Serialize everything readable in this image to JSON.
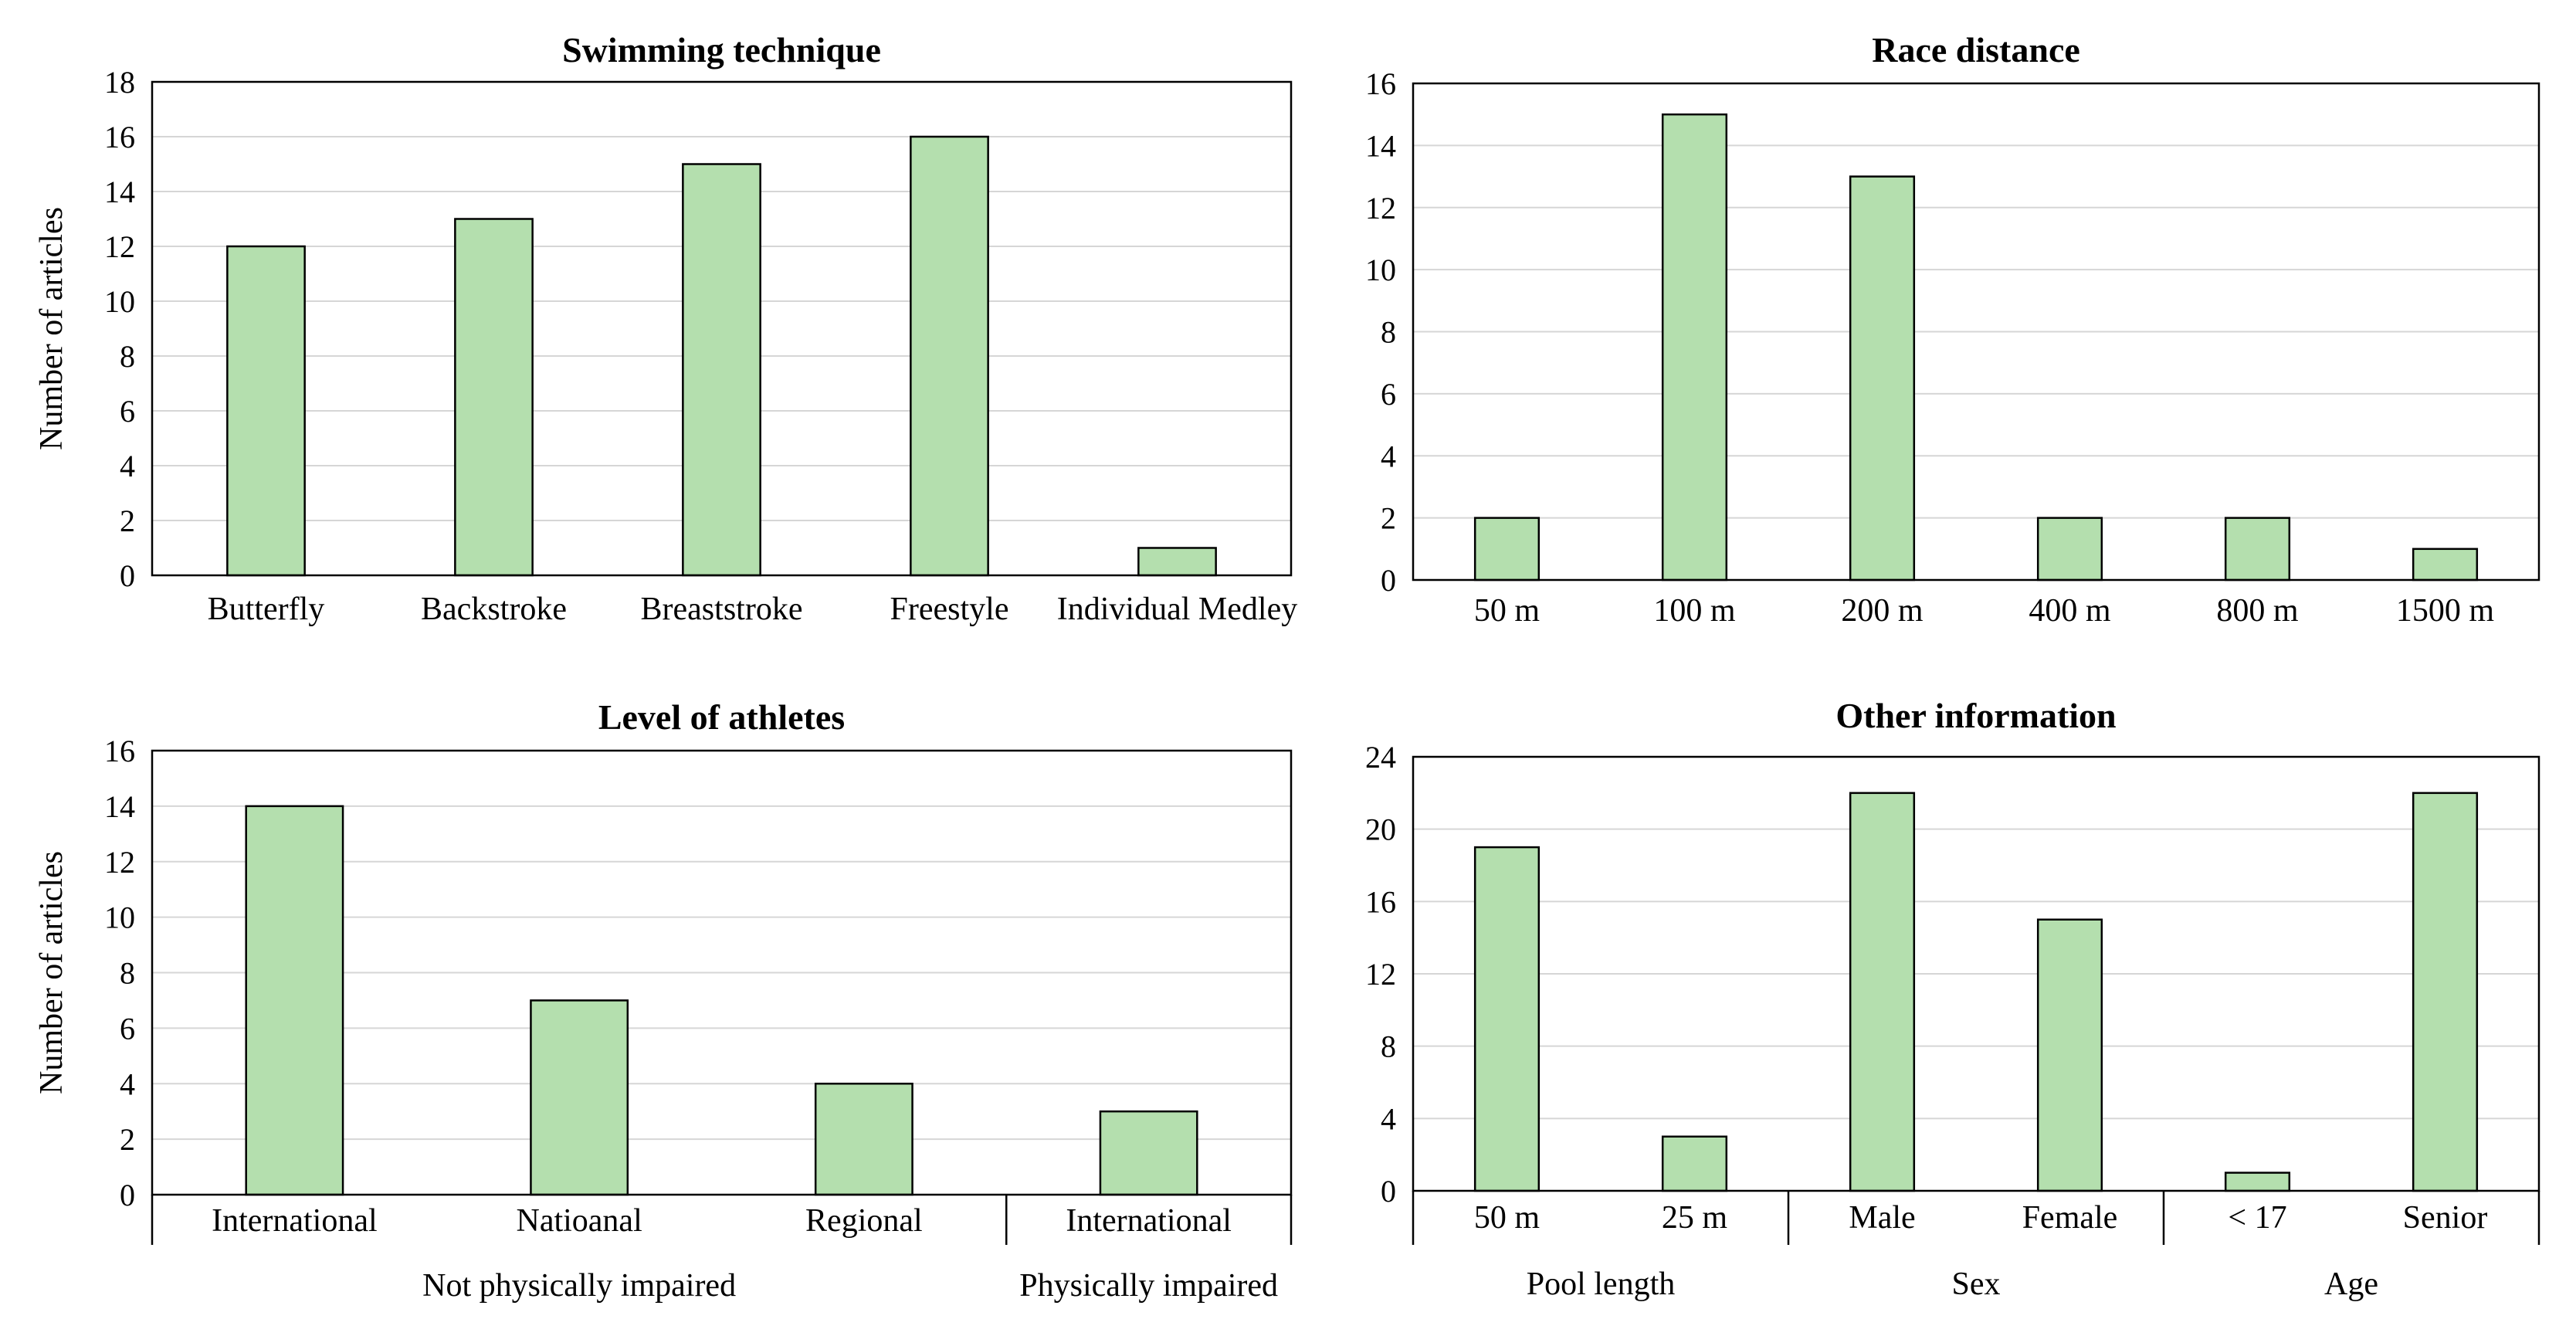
{
  "chart_data": [
    {
      "type": "bar",
      "title": "Swimming technique",
      "ylabel": "Number of articles",
      "categories": [
        "Butterfly",
        "Backstroke",
        "Breaststroke",
        "Freestyle",
        "Individual Medley"
      ],
      "values": [
        12,
        13,
        15,
        16,
        1
      ],
      "ylim": [
        0,
        18
      ],
      "yticks": [
        0,
        2,
        4,
        6,
        8,
        10,
        12,
        14,
        16,
        18
      ],
      "groups": []
    },
    {
      "type": "bar",
      "title": "Race distance",
      "ylabel": "",
      "categories": [
        "50 m",
        "100 m",
        "200 m",
        "400 m",
        "800 m",
        "1500 m"
      ],
      "values": [
        2,
        15,
        13,
        2,
        2,
        1
      ],
      "ylim": [
        0,
        16
      ],
      "yticks": [
        0,
        2,
        4,
        6,
        8,
        10,
        12,
        14,
        16
      ],
      "groups": []
    },
    {
      "type": "bar",
      "title": "Level of athletes",
      "ylabel": "Number of articles",
      "categories": [
        "International",
        "Natioanal",
        "Regional",
        "International"
      ],
      "values": [
        14,
        7,
        4,
        3
      ],
      "ylim": [
        0,
        16
      ],
      "yticks": [
        0,
        2,
        4,
        6,
        8,
        10,
        12,
        14,
        16
      ],
      "groups": [
        {
          "label": "Not physically impaired",
          "count": 3
        },
        {
          "label": "Physically impaired",
          "count": 1
        }
      ]
    },
    {
      "type": "bar",
      "title": "Other information",
      "ylabel": "",
      "categories": [
        "50 m",
        "25 m",
        "Male",
        "Female",
        "< 17",
        "Senior"
      ],
      "values": [
        19,
        3,
        22,
        15,
        1,
        22
      ],
      "ylim": [
        0,
        24
      ],
      "yticks": [
        0,
        4,
        8,
        12,
        16,
        20,
        24
      ],
      "groups": [
        {
          "label": "Pool length",
          "count": 2
        },
        {
          "label": "Sex",
          "count": 2
        },
        {
          "label": "Age",
          "count": 2
        }
      ]
    }
  ]
}
